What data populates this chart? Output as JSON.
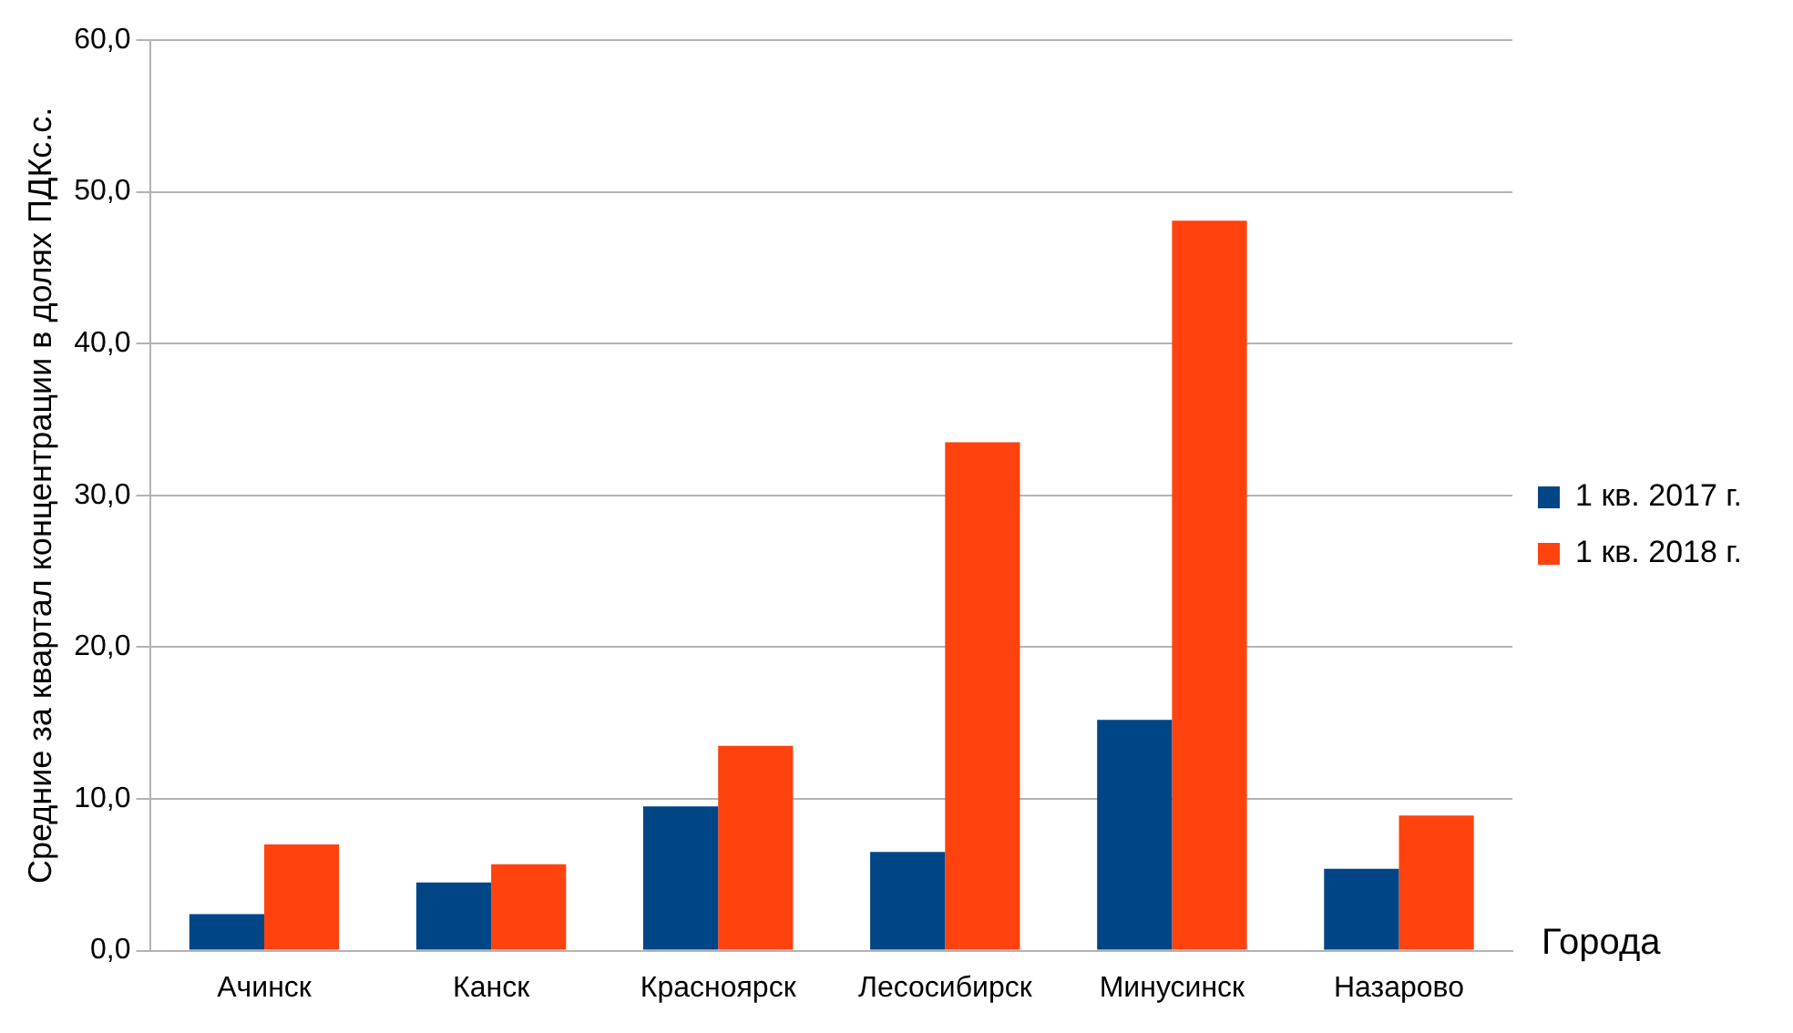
{
  "chart_data": {
    "type": "bar",
    "ylabel": "Средние за квартал концентрации в долях ПДКс.с.",
    "xlabel": "Города",
    "categories": [
      "Ачинск",
      "Канск",
      "Красноярск",
      "Лесосибирск",
      "Минусинск",
      "Назарово"
    ],
    "series": [
      {
        "name": "1 кв. 2017 г.",
        "color": "#004586",
        "values": [
          2.4,
          4.5,
          9.5,
          6.5,
          15.2,
          5.4
        ]
      },
      {
        "name": "1 кв. 2018 г.",
        "color": "#ff420e",
        "values": [
          7.0,
          5.7,
          13.5,
          33.5,
          48.1,
          8.9
        ]
      }
    ],
    "ylim": [
      0,
      60
    ],
    "yticks": [
      {
        "value": 0,
        "label": "0,0"
      },
      {
        "value": 10,
        "label": "10,0"
      },
      {
        "value": 20,
        "label": "20,0"
      },
      {
        "value": 30,
        "label": "30,0"
      },
      {
        "value": 40,
        "label": "40,0"
      },
      {
        "value": 50,
        "label": "50,0"
      },
      {
        "value": 60,
        "label": "60,0"
      }
    ],
    "grid": "y",
    "legend": "right"
  }
}
